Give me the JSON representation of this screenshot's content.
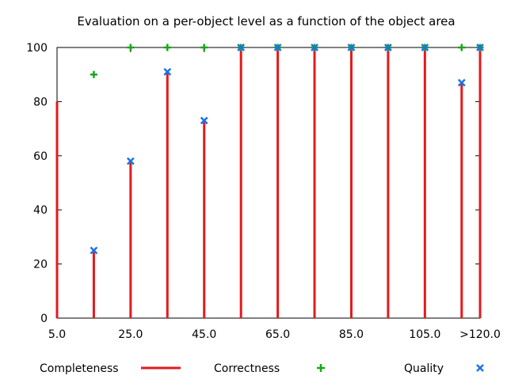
{
  "chart_data": {
    "type": "bar",
    "title": "Evaluation on a per-object level as a function of the object area",
    "xlabel": "",
    "ylabel": "",
    "x": [
      5,
      15,
      25,
      35,
      45,
      55,
      65,
      75,
      85,
      95,
      105,
      115,
      120
    ],
    "xlim": [
      5,
      120
    ],
    "ylim": [
      0,
      100
    ],
    "x_tick_labels": [
      {
        "value": 5,
        "label": "5.0"
      },
      {
        "value": 25,
        "label": "25.0"
      },
      {
        "value": 45,
        "label": "45.0"
      },
      {
        "value": 65,
        "label": "65.0"
      },
      {
        "value": 85,
        "label": "85.0"
      },
      {
        "value": 105,
        "label": "105.0"
      },
      {
        "value": 120,
        "label": ">120.0"
      }
    ],
    "y_ticks": [
      "0",
      "20",
      "40",
      "60",
      "80",
      "100"
    ],
    "series": [
      {
        "name": "Completeness",
        "style": "impulses",
        "color": "#e31a1c",
        "values": [
          80,
          25,
          58,
          91,
          73,
          100,
          100,
          100,
          100,
          100,
          100,
          87,
          100
        ]
      },
      {
        "name": "Correctness",
        "style": "points",
        "marker": "plus",
        "color": "#1aa61a",
        "values": [
          null,
          90,
          100,
          100,
          100,
          100,
          100,
          100,
          100,
          100,
          100,
          100,
          100
        ]
      },
      {
        "name": "Quality",
        "style": "points",
        "marker": "cross",
        "color": "#1a73e8",
        "values": [
          null,
          25,
          58,
          91,
          73,
          100,
          100,
          100,
          100,
          100,
          100,
          87,
          100
        ]
      }
    ],
    "legend_position": "bottom"
  }
}
